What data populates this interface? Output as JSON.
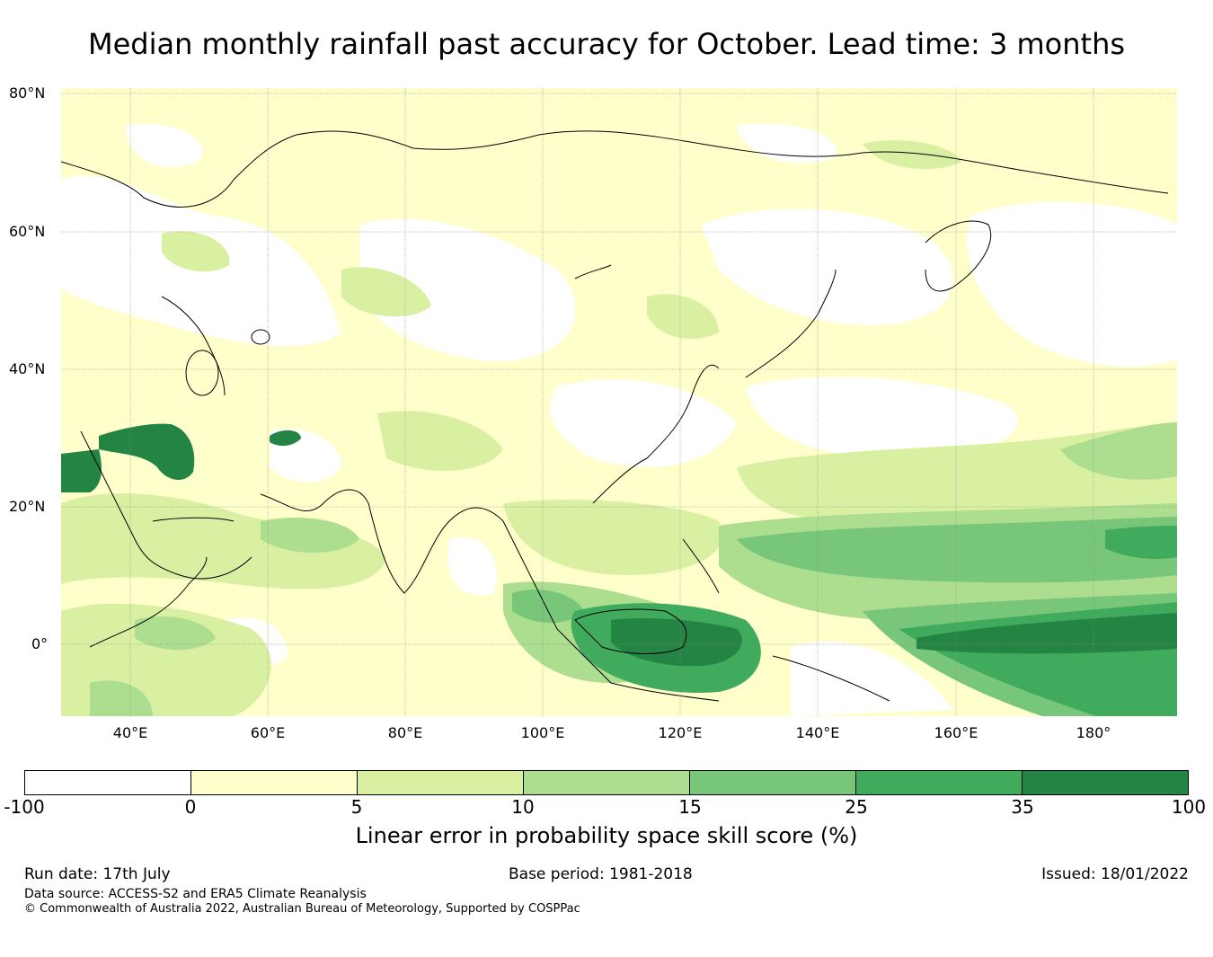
{
  "title": "Median monthly rainfall past accuracy for October. Lead time: 3 months",
  "map": {
    "lat_labels": [
      "80°N",
      "60°N",
      "40°N",
      "20°N",
      "0°"
    ],
    "lon_labels": [
      "40°E",
      "60°E",
      "80°E",
      "100°E",
      "120°E",
      "140°E",
      "160°E",
      "180°"
    ],
    "extent": {
      "lon_min": 30,
      "lon_max": 192,
      "lat_min": -10,
      "lat_max": 81
    }
  },
  "colorbar": {
    "label": "Linear error in probability space skill score (%)",
    "ticks": [
      "-100",
      "0",
      "5",
      "10",
      "15",
      "25",
      "35",
      "100"
    ],
    "colors": [
      "#ffffff",
      "#ffffcc",
      "#d9f0a3",
      "#addd8e",
      "#78c679",
      "#41ab5d",
      "#238443"
    ]
  },
  "footer": {
    "run_date": "Run date: 17th July",
    "base_period": "Base period: 1981-2018",
    "issued": "Issued: 18/01/2022",
    "data_source": "Data source: ACCESS-S2 and ERA5 Climate Reanalysis",
    "copyright": "© Commonwealth of Australia 2022, Australian Bureau of Meteorology, Supported by COSPPac"
  }
}
